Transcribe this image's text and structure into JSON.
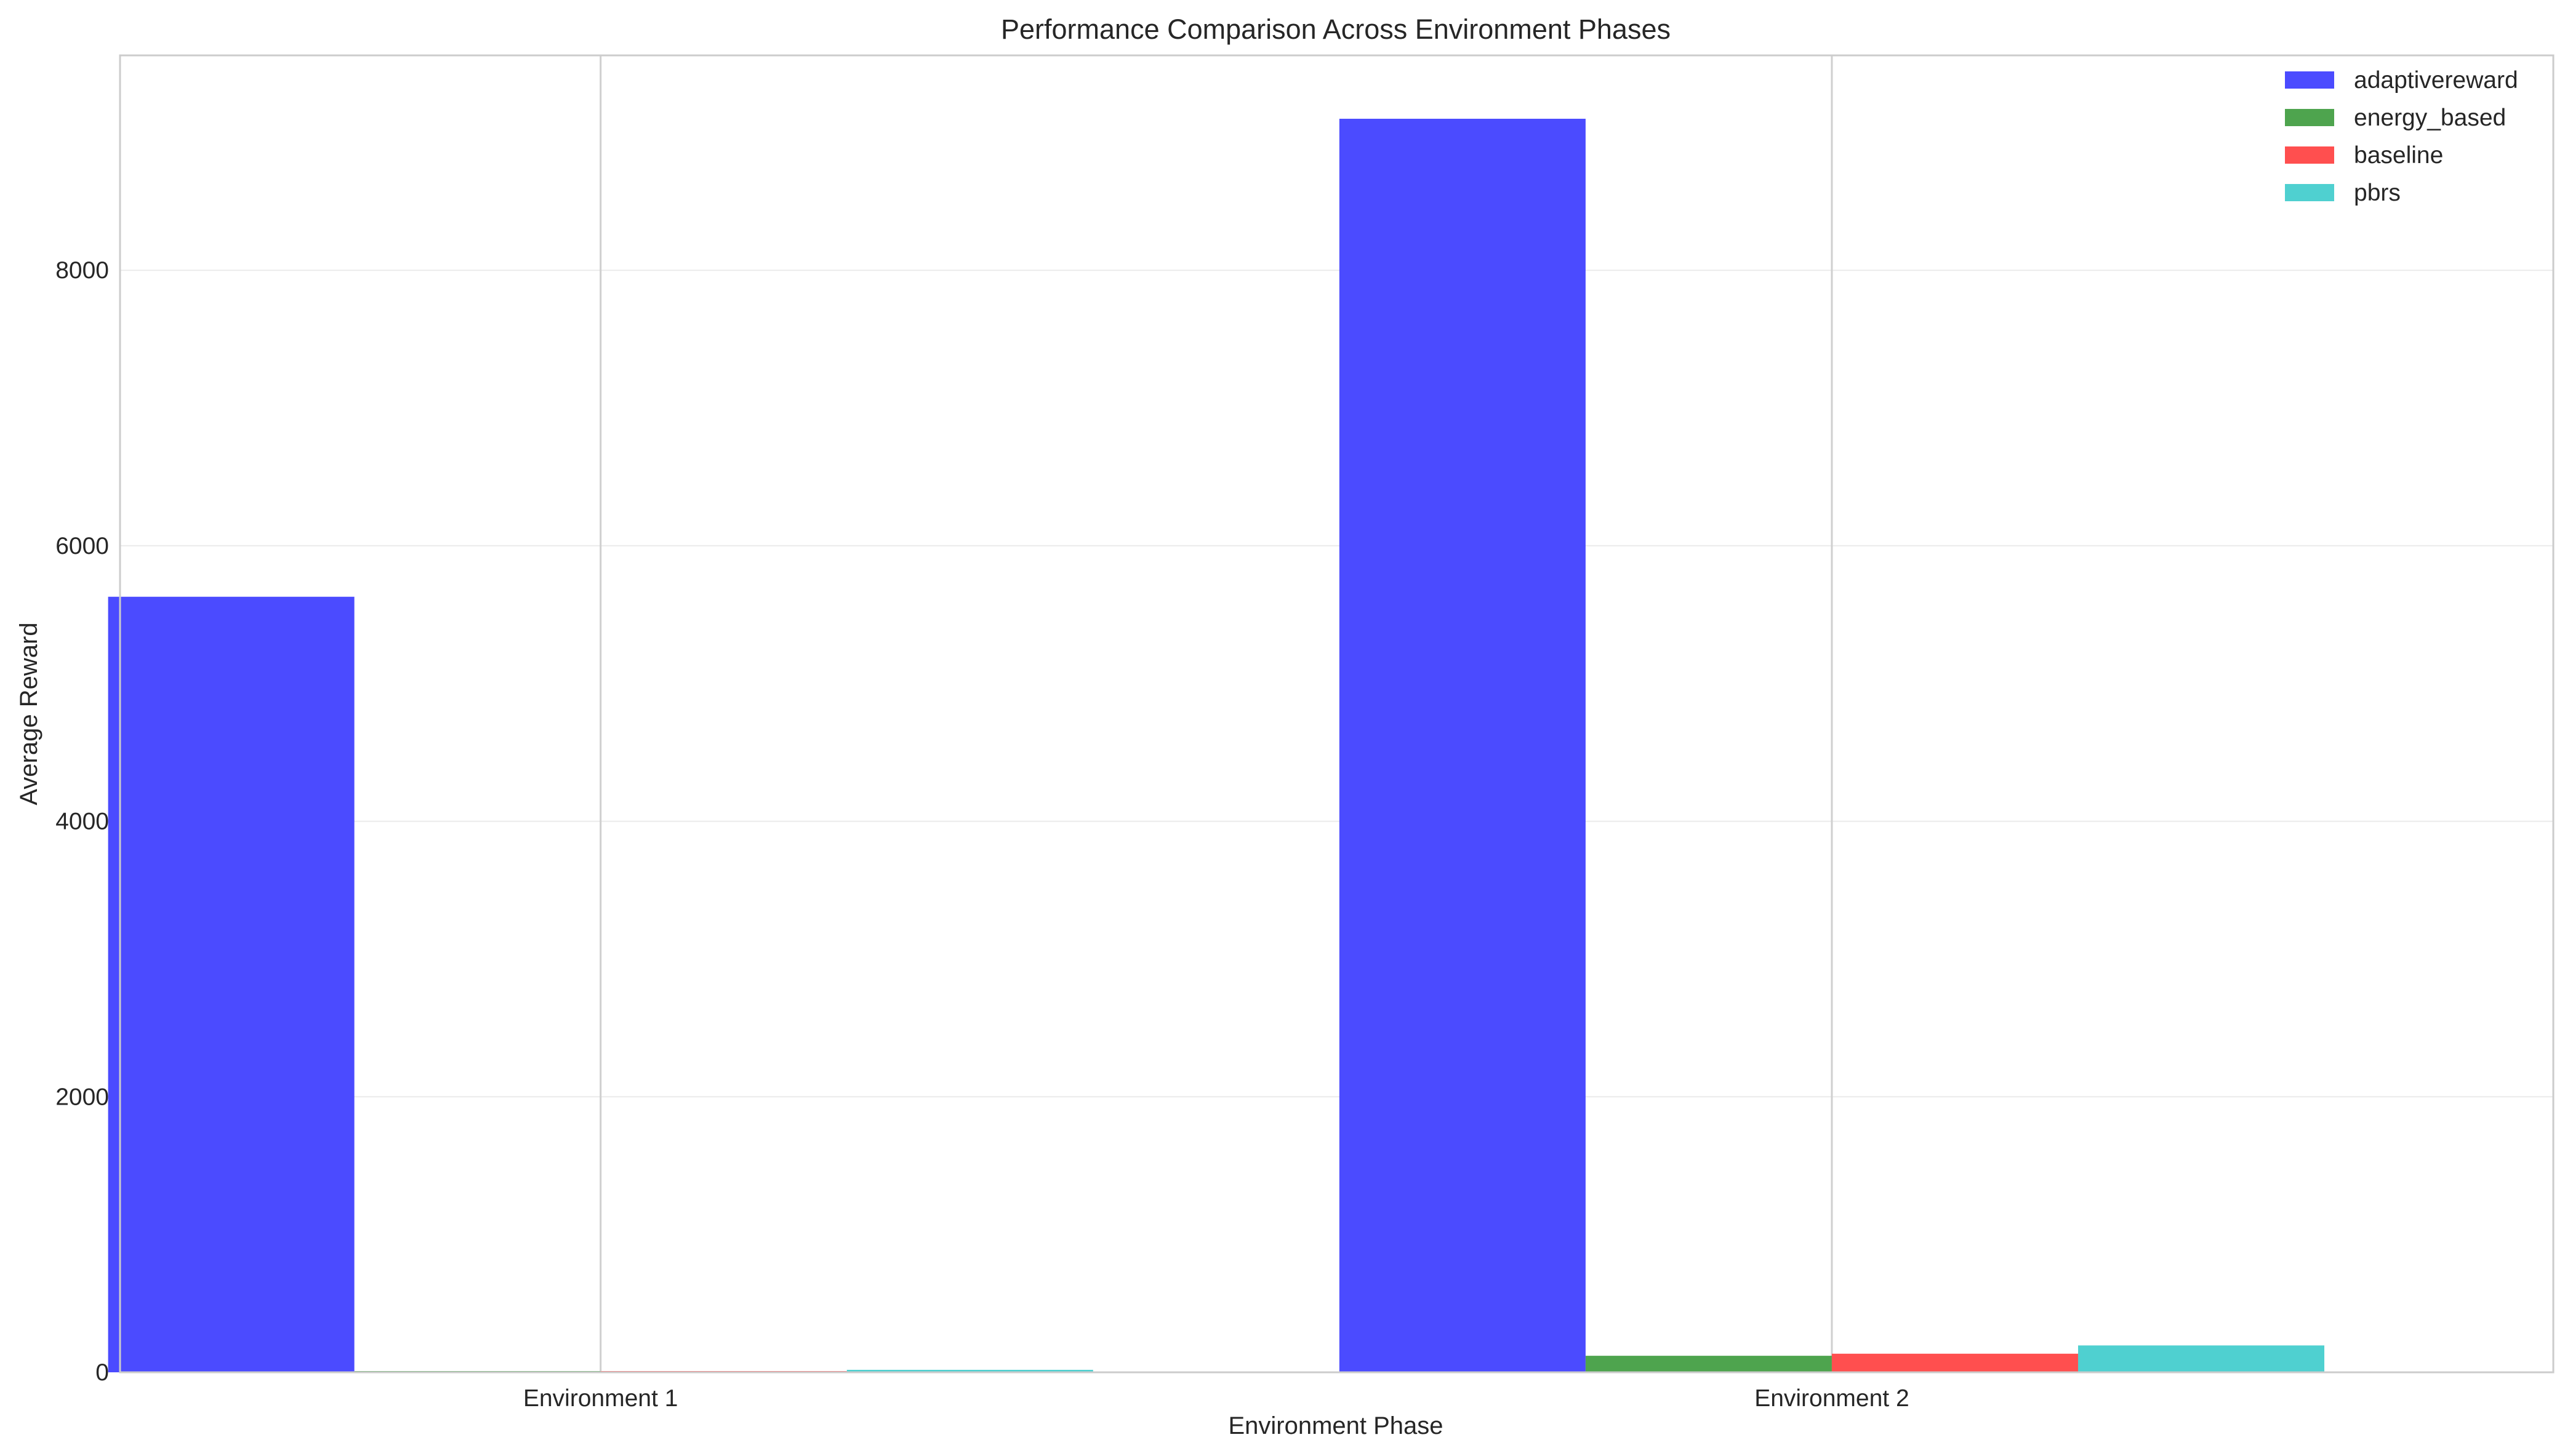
{
  "chart_data": {
    "type": "bar",
    "title": "Performance Comparison Across Environment Phases",
    "xlabel": "Environment Phase",
    "ylabel": "Average Reward",
    "categories": [
      "Environment 1",
      "Environment 2"
    ],
    "series": [
      {
        "name": "adaptivereward",
        "color": "#4b4bff",
        "values": [
          5630,
          9100
        ]
      },
      {
        "name": "energy_based",
        "color": "#4ea44e",
        "values": [
          8,
          120
        ]
      },
      {
        "name": "baseline",
        "color": "#ff4f4f",
        "values": [
          6,
          135
        ]
      },
      {
        "name": "pbrs",
        "color": "#4fd0d0",
        "values": [
          18,
          195
        ]
      }
    ],
    "ylim": [
      0,
      9560
    ],
    "yticks": [
      0,
      2000,
      4000,
      6000,
      8000
    ],
    "ytick_labels": [
      "0",
      "2000",
      "4000",
      "6000",
      "8000"
    ],
    "grid": true,
    "legend_position": "top-right"
  }
}
